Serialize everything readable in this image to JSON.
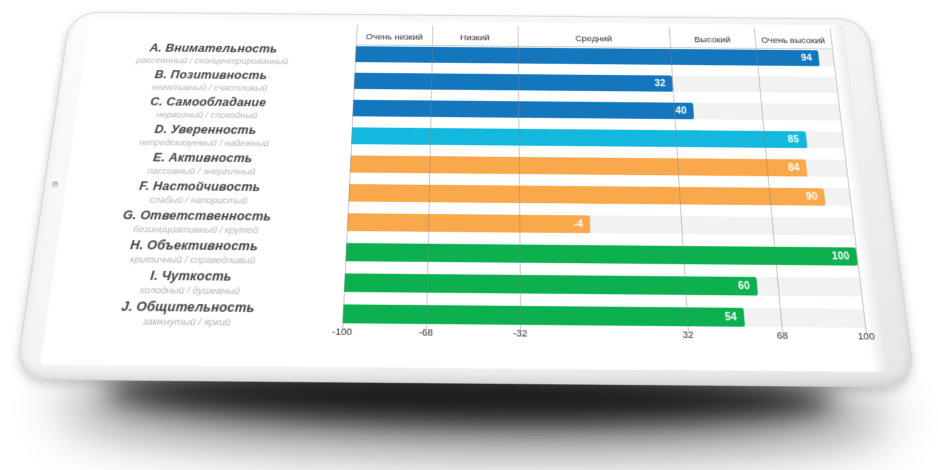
{
  "chart_data": {
    "type": "bar",
    "orientation": "horizontal",
    "axis": {
      "min": -100,
      "max": 100,
      "ticks": [
        -100,
        -68,
        -32,
        32,
        68,
        100
      ],
      "grid": true
    },
    "level_bands": {
      "labels": [
        "Очень низкий",
        "Низкий",
        "Средний",
        "Высокий",
        "Очень высокий"
      ],
      "boundaries": [
        -100,
        -68,
        -32,
        32,
        68,
        100
      ]
    },
    "rows": [
      {
        "letter": "A.",
        "name": "Внимательность",
        "traits": "рассеянный / сконцентрированный",
        "value": 94,
        "color": "#1477bd"
      },
      {
        "letter": "B.",
        "name": "Позитивность",
        "traits": "негативный / счастливый",
        "value": 32,
        "color": "#1477bd"
      },
      {
        "letter": "C.",
        "name": "Самообладание",
        "traits": "нервозный / спокойный",
        "value": 40,
        "color": "#1477bd"
      },
      {
        "letter": "D.",
        "name": "Уверенность",
        "traits": "непредсказуемый / надежный",
        "value": 85,
        "color": "#12b8dd"
      },
      {
        "letter": "E.",
        "name": "Активность",
        "traits": "пассивный / энергичный",
        "value": 84,
        "color": "#f9a94c"
      },
      {
        "letter": "F.",
        "name": "Настойчивость",
        "traits": "слабый / напористый",
        "value": 90,
        "color": "#f9a94c"
      },
      {
        "letter": "G.",
        "name": "Ответственность",
        "traits": "безинициативный / крутой",
        "value": -4,
        "color": "#f9a94c"
      },
      {
        "letter": "H.",
        "name": "Объективность",
        "traits": "критичный / справедливый",
        "value": 100,
        "color": "#0cb04f"
      },
      {
        "letter": "I.",
        "name": "Чуткость",
        "traits": "холодный / душевный",
        "value": 60,
        "color": "#0cb04f"
      },
      {
        "letter": "J.",
        "name": "Общительность",
        "traits": "замкнутый / яркий",
        "value": 54,
        "color": "#0cb04f"
      }
    ],
    "palette": {
      "blue": "#1477bd",
      "cyan": "#12b8dd",
      "orange": "#f9a94c",
      "green": "#0cb04f",
      "track": "#f2f2f2",
      "gridline": "#c6c6c6"
    }
  }
}
